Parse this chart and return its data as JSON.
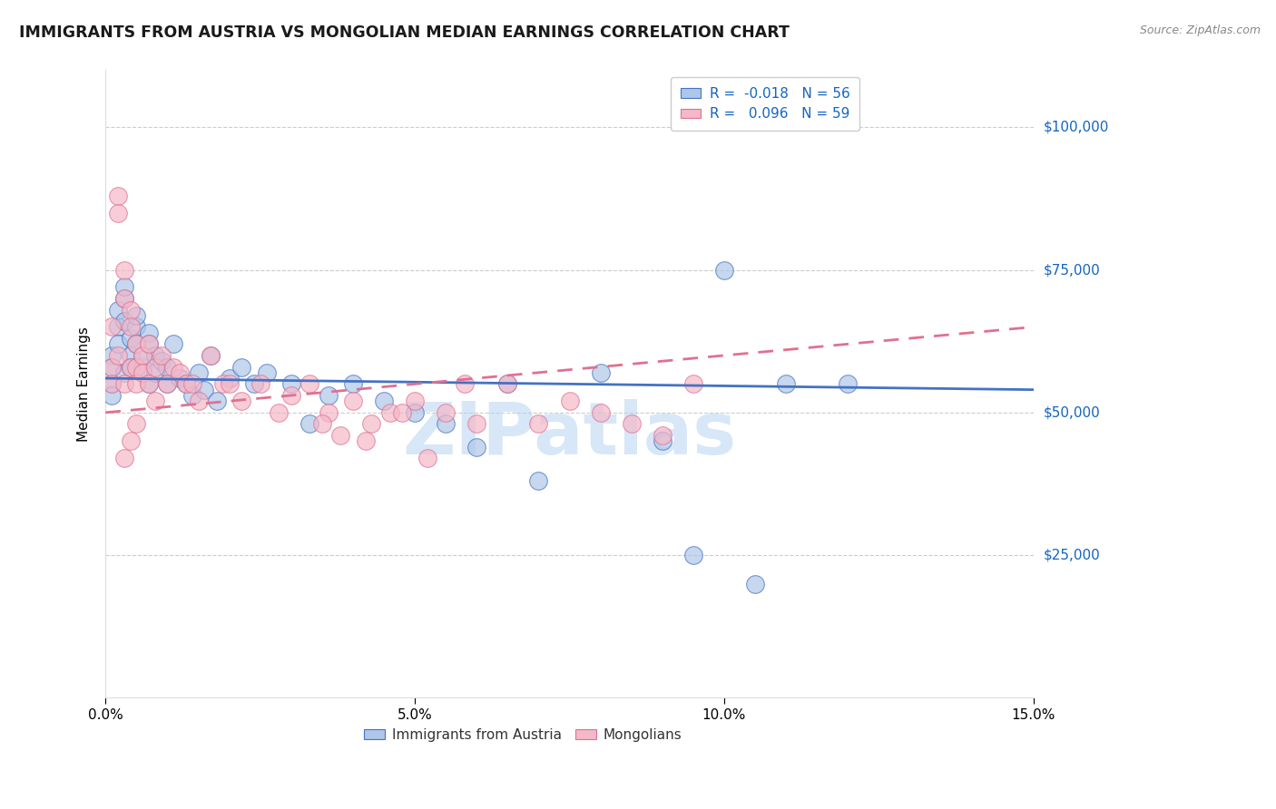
{
  "title": "IMMIGRANTS FROM AUSTRIA VS MONGOLIAN MEDIAN EARNINGS CORRELATION CHART",
  "source": "Source: ZipAtlas.com",
  "ylabel": "Median Earnings",
  "xlim": [
    0,
    0.15
  ],
  "ylim": [
    0,
    110000
  ],
  "yticks": [
    0,
    25000,
    50000,
    75000,
    100000
  ],
  "ytick_labels": [
    "",
    "$25,000",
    "$50,000",
    "$75,000",
    "$100,000"
  ],
  "xticks": [
    0.0,
    0.05,
    0.1,
    0.15
  ],
  "xtick_labels": [
    "0.0%",
    "5.0%",
    "10.0%",
    "15.0%"
  ],
  "legend_r_austria": "-0.018",
  "legend_n_austria": "56",
  "legend_r_mongolian": "0.096",
  "legend_n_mongolian": "59",
  "austria_color": "#aec6e8",
  "mongolian_color": "#f4b8c8",
  "austria_line_color": "#4472c4",
  "mongolian_line_color": "#e07090",
  "watermark": "ZIPatlas",
  "watermark_color": "#b0d0f0",
  "austria_x": [
    0.001,
    0.001,
    0.001,
    0.001,
    0.002,
    0.002,
    0.002,
    0.003,
    0.003,
    0.003,
    0.003,
    0.004,
    0.004,
    0.004,
    0.005,
    0.005,
    0.005,
    0.006,
    0.006,
    0.007,
    0.007,
    0.007,
    0.008,
    0.008,
    0.009,
    0.01,
    0.01,
    0.011,
    0.012,
    0.013,
    0.014,
    0.015,
    0.016,
    0.017,
    0.018,
    0.02,
    0.022,
    0.024,
    0.026,
    0.03,
    0.033,
    0.036,
    0.04,
    0.045,
    0.05,
    0.055,
    0.06,
    0.065,
    0.07,
    0.08,
    0.09,
    0.095,
    0.1,
    0.105,
    0.11,
    0.12
  ],
  "austria_y": [
    60000,
    55000,
    58000,
    53000,
    65000,
    68000,
    62000,
    57000,
    70000,
    72000,
    66000,
    60000,
    63000,
    58000,
    65000,
    62000,
    67000,
    58000,
    60000,
    64000,
    55000,
    62000,
    57000,
    60000,
    59000,
    55000,
    58000,
    62000,
    56000,
    55000,
    53000,
    57000,
    54000,
    60000,
    52000,
    56000,
    58000,
    55000,
    57000,
    55000,
    48000,
    53000,
    55000,
    52000,
    50000,
    48000,
    44000,
    55000,
    38000,
    57000,
    45000,
    25000,
    75000,
    20000,
    55000,
    55000
  ],
  "mongolian_x": [
    0.001,
    0.001,
    0.001,
    0.002,
    0.002,
    0.002,
    0.003,
    0.003,
    0.003,
    0.004,
    0.004,
    0.004,
    0.005,
    0.005,
    0.005,
    0.006,
    0.006,
    0.007,
    0.007,
    0.008,
    0.008,
    0.009,
    0.01,
    0.011,
    0.012,
    0.013,
    0.014,
    0.015,
    0.017,
    0.019,
    0.02,
    0.022,
    0.025,
    0.028,
    0.03,
    0.033,
    0.036,
    0.04,
    0.043,
    0.046,
    0.05,
    0.055,
    0.06,
    0.065,
    0.07,
    0.075,
    0.08,
    0.085,
    0.09,
    0.095,
    0.003,
    0.004,
    0.005,
    0.035,
    0.038,
    0.042,
    0.048,
    0.052,
    0.058
  ],
  "mongolian_y": [
    65000,
    58000,
    55000,
    88000,
    85000,
    60000,
    75000,
    70000,
    55000,
    68000,
    65000,
    58000,
    62000,
    58000,
    55000,
    60000,
    57000,
    62000,
    55000,
    58000,
    52000,
    60000,
    55000,
    58000,
    57000,
    55000,
    55000,
    52000,
    60000,
    55000,
    55000,
    52000,
    55000,
    50000,
    53000,
    55000,
    50000,
    52000,
    48000,
    50000,
    52000,
    50000,
    48000,
    55000,
    48000,
    52000,
    50000,
    48000,
    46000,
    55000,
    42000,
    45000,
    48000,
    48000,
    46000,
    45000,
    50000,
    42000,
    55000
  ]
}
